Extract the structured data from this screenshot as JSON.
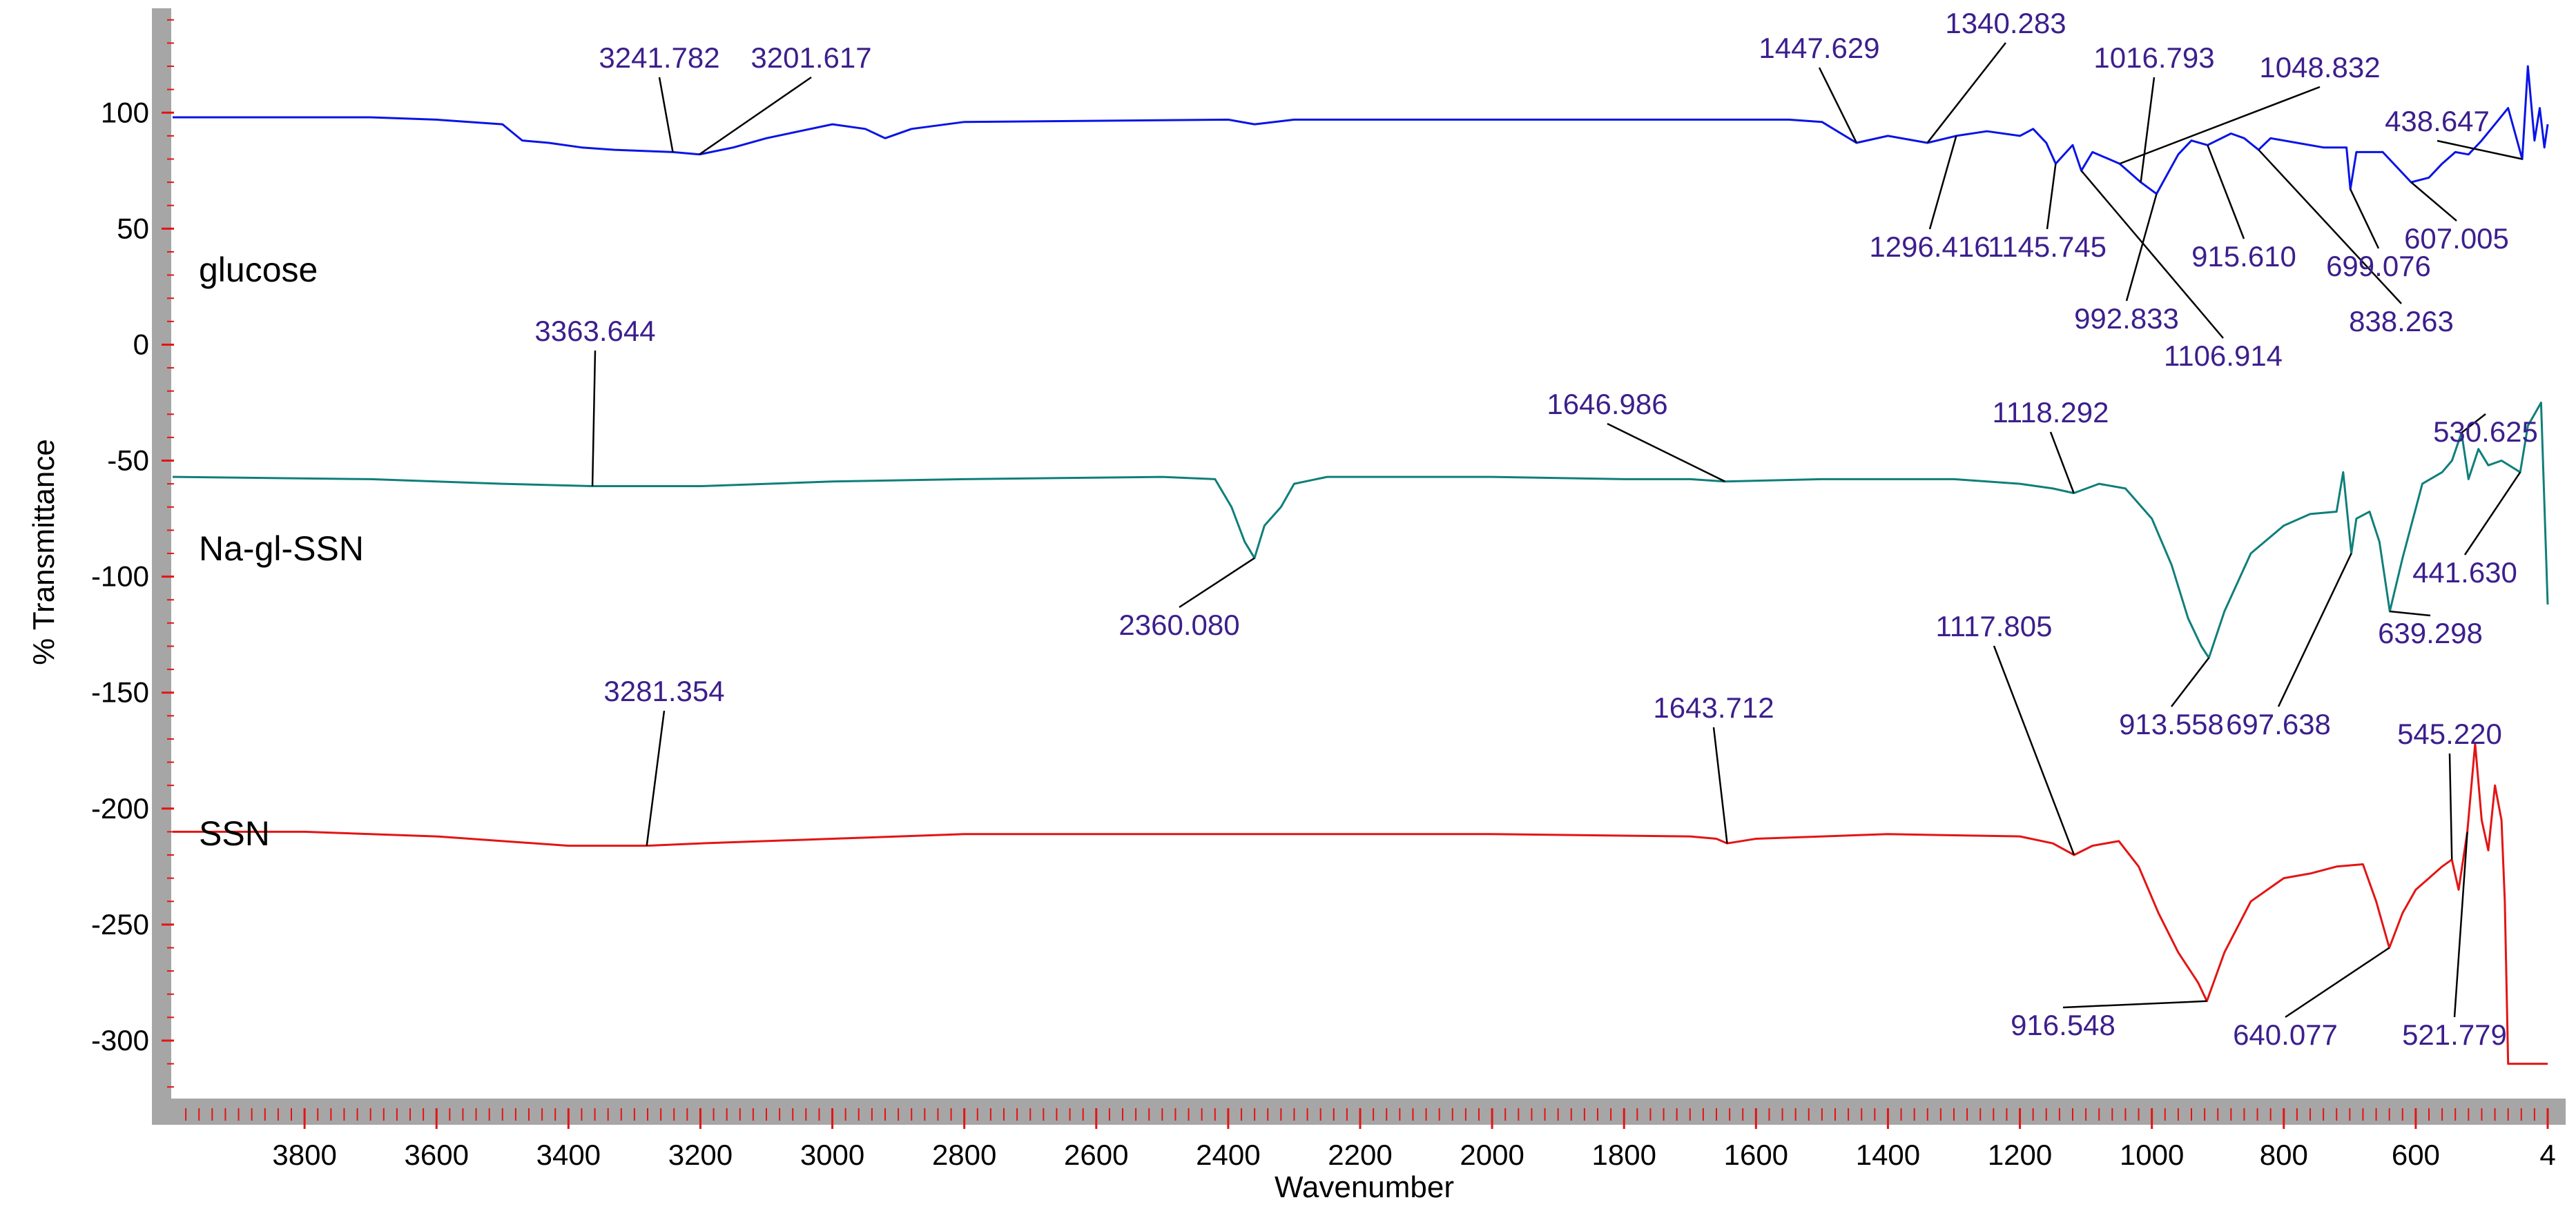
{
  "chart_data": {
    "type": "line",
    "xlabel": "Wavenumber",
    "ylabel": "% Transmittance",
    "xlim": [
      4000,
      400
    ],
    "ylim": [
      -325,
      145
    ],
    "x_ticks": [
      "3800",
      "3600",
      "3400",
      "3200",
      "3000",
      "2800",
      "2600",
      "2400",
      "2200",
      "2000",
      "1800",
      "1600",
      "1400",
      "1200",
      "1000",
      "800",
      "600",
      "4"
    ],
    "y_ticks": [
      "100",
      "50",
      "0",
      "-50",
      "-100",
      "-150",
      "-200",
      "-250",
      "-300"
    ],
    "colors": {
      "glucose": "#0a14e6",
      "Na-gl-SSN": "#0f7f7a",
      "SSN": "#e41414",
      "peak_label": "#3c1f8c",
      "frame": "#a6a6a6",
      "tick": "#e41414"
    },
    "series": [
      {
        "name": "glucose",
        "points": [
          [
            4000,
            98
          ],
          [
            3800,
            98
          ],
          [
            3700,
            98
          ],
          [
            3600,
            97
          ],
          [
            3500,
            95
          ],
          [
            3470,
            88
          ],
          [
            3430,
            87
          ],
          [
            3380,
            85
          ],
          [
            3330,
            84
          ],
          [
            3241.782,
            83
          ],
          [
            3201.617,
            82
          ],
          [
            3150,
            85
          ],
          [
            3100,
            89
          ],
          [
            3050,
            92
          ],
          [
            3000,
            95
          ],
          [
            2950,
            93
          ],
          [
            2920,
            89
          ],
          [
            2880,
            93
          ],
          [
            2800,
            96
          ],
          [
            2400,
            97
          ],
          [
            2360,
            95
          ],
          [
            2300,
            97
          ],
          [
            1700,
            97
          ],
          [
            1550,
            97
          ],
          [
            1500,
            96
          ],
          [
            1447.629,
            87
          ],
          [
            1400,
            90
          ],
          [
            1340.283,
            87
          ],
          [
            1296.416,
            90
          ],
          [
            1250,
            92
          ],
          [
            1200,
            90
          ],
          [
            1180,
            93
          ],
          [
            1160,
            87
          ],
          [
            1145.745,
            78
          ],
          [
            1120,
            86
          ],
          [
            1106.914,
            75
          ],
          [
            1090,
            83
          ],
          [
            1048.832,
            78
          ],
          [
            1016.793,
            70
          ],
          [
            992.833,
            65
          ],
          [
            960,
            82
          ],
          [
            940,
            88
          ],
          [
            915.61,
            86
          ],
          [
            880,
            91
          ],
          [
            860,
            89
          ],
          [
            838.263,
            84
          ],
          [
            820,
            89
          ],
          [
            780,
            87
          ],
          [
            740,
            85
          ],
          [
            705,
            85
          ],
          [
            699.076,
            67
          ],
          [
            690,
            83
          ],
          [
            650,
            83
          ],
          [
            607.005,
            70
          ],
          [
            580,
            72
          ],
          [
            560,
            78
          ],
          [
            540,
            83
          ],
          [
            520,
            82
          ],
          [
            500,
            88
          ],
          [
            480,
            95
          ],
          [
            460,
            102
          ],
          [
            438.647,
            80
          ],
          [
            430,
            120
          ],
          [
            420,
            88
          ],
          [
            412,
            102
          ],
          [
            405,
            85
          ],
          [
            400,
            95
          ]
        ]
      },
      {
        "name": "Na-gl-SSN",
        "points": [
          [
            4000,
            -57
          ],
          [
            3700,
            -58
          ],
          [
            3600,
            -59
          ],
          [
            3500,
            -60
          ],
          [
            3363.644,
            -61
          ],
          [
            3200,
            -61
          ],
          [
            3000,
            -59
          ],
          [
            2800,
            -58
          ],
          [
            2500,
            -57
          ],
          [
            2420,
            -58
          ],
          [
            2395,
            -70
          ],
          [
            2375,
            -85
          ],
          [
            2360.08,
            -92
          ],
          [
            2345,
            -78
          ],
          [
            2320,
            -70
          ],
          [
            2300,
            -60
          ],
          [
            2250,
            -57
          ],
          [
            2000,
            -57
          ],
          [
            1800,
            -58
          ],
          [
            1700,
            -58
          ],
          [
            1646.986,
            -59
          ],
          [
            1500,
            -58
          ],
          [
            1300,
            -58
          ],
          [
            1200,
            -60
          ],
          [
            1150,
            -62
          ],
          [
            1118.292,
            -64
          ],
          [
            1080,
            -60
          ],
          [
            1040,
            -62
          ],
          [
            1000,
            -75
          ],
          [
            970,
            -95
          ],
          [
            945,
            -118
          ],
          [
            925,
            -130
          ],
          [
            913.558,
            -135
          ],
          [
            890,
            -115
          ],
          [
            850,
            -90
          ],
          [
            800,
            -78
          ],
          [
            760,
            -73
          ],
          [
            720,
            -72
          ],
          [
            710,
            -55
          ],
          [
            697.638,
            -90
          ],
          [
            690,
            -75
          ],
          [
            670,
            -72
          ],
          [
            655,
            -85
          ],
          [
            639.298,
            -115
          ],
          [
            620,
            -92
          ],
          [
            590,
            -60
          ],
          [
            560,
            -55
          ],
          [
            545,
            -50
          ],
          [
            530.625,
            -38
          ],
          [
            520,
            -58
          ],
          [
            505,
            -45
          ],
          [
            490,
            -52
          ],
          [
            470,
            -50
          ],
          [
            441.63,
            -55
          ],
          [
            430,
            -35
          ],
          [
            420,
            -30
          ],
          [
            410,
            -25
          ],
          [
            400,
            -112
          ]
        ]
      },
      {
        "name": "SSN",
        "points": [
          [
            4000,
            -210
          ],
          [
            3800,
            -210
          ],
          [
            3600,
            -212
          ],
          [
            3500,
            -214
          ],
          [
            3400,
            -216
          ],
          [
            3281.354,
            -216
          ],
          [
            3200,
            -215
          ],
          [
            3000,
            -213
          ],
          [
            2800,
            -211
          ],
          [
            2400,
            -211
          ],
          [
            2000,
            -211
          ],
          [
            1700,
            -212
          ],
          [
            1660,
            -213
          ],
          [
            1643.712,
            -215
          ],
          [
            1600,
            -213
          ],
          [
            1400,
            -211
          ],
          [
            1200,
            -212
          ],
          [
            1150,
            -215
          ],
          [
            1117.805,
            -220
          ],
          [
            1090,
            -216
          ],
          [
            1050,
            -214
          ],
          [
            1020,
            -225
          ],
          [
            990,
            -245
          ],
          [
            960,
            -262
          ],
          [
            930,
            -275
          ],
          [
            916.548,
            -283
          ],
          [
            890,
            -262
          ],
          [
            850,
            -240
          ],
          [
            800,
            -230
          ],
          [
            760,
            -228
          ],
          [
            720,
            -225
          ],
          [
            680,
            -224
          ],
          [
            660,
            -240
          ],
          [
            640.077,
            -260
          ],
          [
            620,
            -245
          ],
          [
            600,
            -235
          ],
          [
            580,
            -230
          ],
          [
            560,
            -225
          ],
          [
            545.22,
            -222
          ],
          [
            535,
            -235
          ],
          [
            521.779,
            -210
          ],
          [
            510,
            -172
          ],
          [
            500,
            -205
          ],
          [
            490,
            -218
          ],
          [
            480,
            -190
          ],
          [
            470,
            -205
          ],
          [
            465,
            -240
          ],
          [
            460,
            -310
          ],
          [
            400,
            -310
          ]
        ]
      }
    ],
    "series_labels": [
      "glucose",
      "Na-gl-SSN",
      "SSN"
    ],
    "peak_annotations": [
      {
        "text": "3241.782",
        "series": "glucose",
        "x": 3241.782
      },
      {
        "text": "3201.617",
        "series": "glucose",
        "x": 3201.617
      },
      {
        "text": "1447.629",
        "series": "glucose",
        "x": 1447.629
      },
      {
        "text": "1340.283",
        "series": "glucose",
        "x": 1340.283
      },
      {
        "text": "1016.793",
        "series": "glucose",
        "x": 1016.793
      },
      {
        "text": "1048.832",
        "series": "glucose",
        "x": 1048.832
      },
      {
        "text": "438.647",
        "series": "glucose",
        "x": 438.647
      },
      {
        "text": "1296.416",
        "series": "glucose",
        "x": 1296.416
      },
      {
        "text": "1145.745",
        "series": "glucose",
        "x": 1145.745
      },
      {
        "text": "992.833",
        "series": "glucose",
        "x": 992.833
      },
      {
        "text": "1106.914",
        "series": "glucose",
        "x": 1106.914
      },
      {
        "text": "915.610",
        "series": "glucose",
        "x": 915.61
      },
      {
        "text": "838.263",
        "series": "glucose",
        "x": 838.263
      },
      {
        "text": "699.076",
        "series": "glucose",
        "x": 699.076
      },
      {
        "text": "607.005",
        "series": "glucose",
        "x": 607.005
      },
      {
        "text": "3363.644",
        "series": "Na-gl-SSN",
        "x": 3363.644
      },
      {
        "text": "1646.986",
        "series": "Na-gl-SSN",
        "x": 1646.986
      },
      {
        "text": "1118.292",
        "series": "Na-gl-SSN",
        "x": 1118.292
      },
      {
        "text": "530.625",
        "series": "Na-gl-SSN",
        "x": 530.625
      },
      {
        "text": "2360.080",
        "series": "Na-gl-SSN",
        "x": 2360.08
      },
      {
        "text": "441.630",
        "series": "Na-gl-SSN",
        "x": 441.63
      },
      {
        "text": "639.298",
        "series": "Na-gl-SSN",
        "x": 639.298
      },
      {
        "text": "913.558",
        "series": "Na-gl-SSN",
        "x": 913.558
      },
      {
        "text": "697.638",
        "series": "Na-gl-SSN",
        "x": 697.638
      },
      {
        "text": "3281.354",
        "series": "SSN",
        "x": 3281.354
      },
      {
        "text": "1643.712",
        "series": "SSN",
        "x": 1643.712
      },
      {
        "text": "1117.805",
        "series": "SSN",
        "x": 1117.805
      },
      {
        "text": "545.220",
        "series": "SSN",
        "x": 545.22
      },
      {
        "text": "916.548",
        "series": "SSN",
        "x": 916.548
      },
      {
        "text": "640.077",
        "series": "SSN",
        "x": 640.077
      },
      {
        "text": "521.779",
        "series": "SSN",
        "x": 521.779
      }
    ]
  }
}
